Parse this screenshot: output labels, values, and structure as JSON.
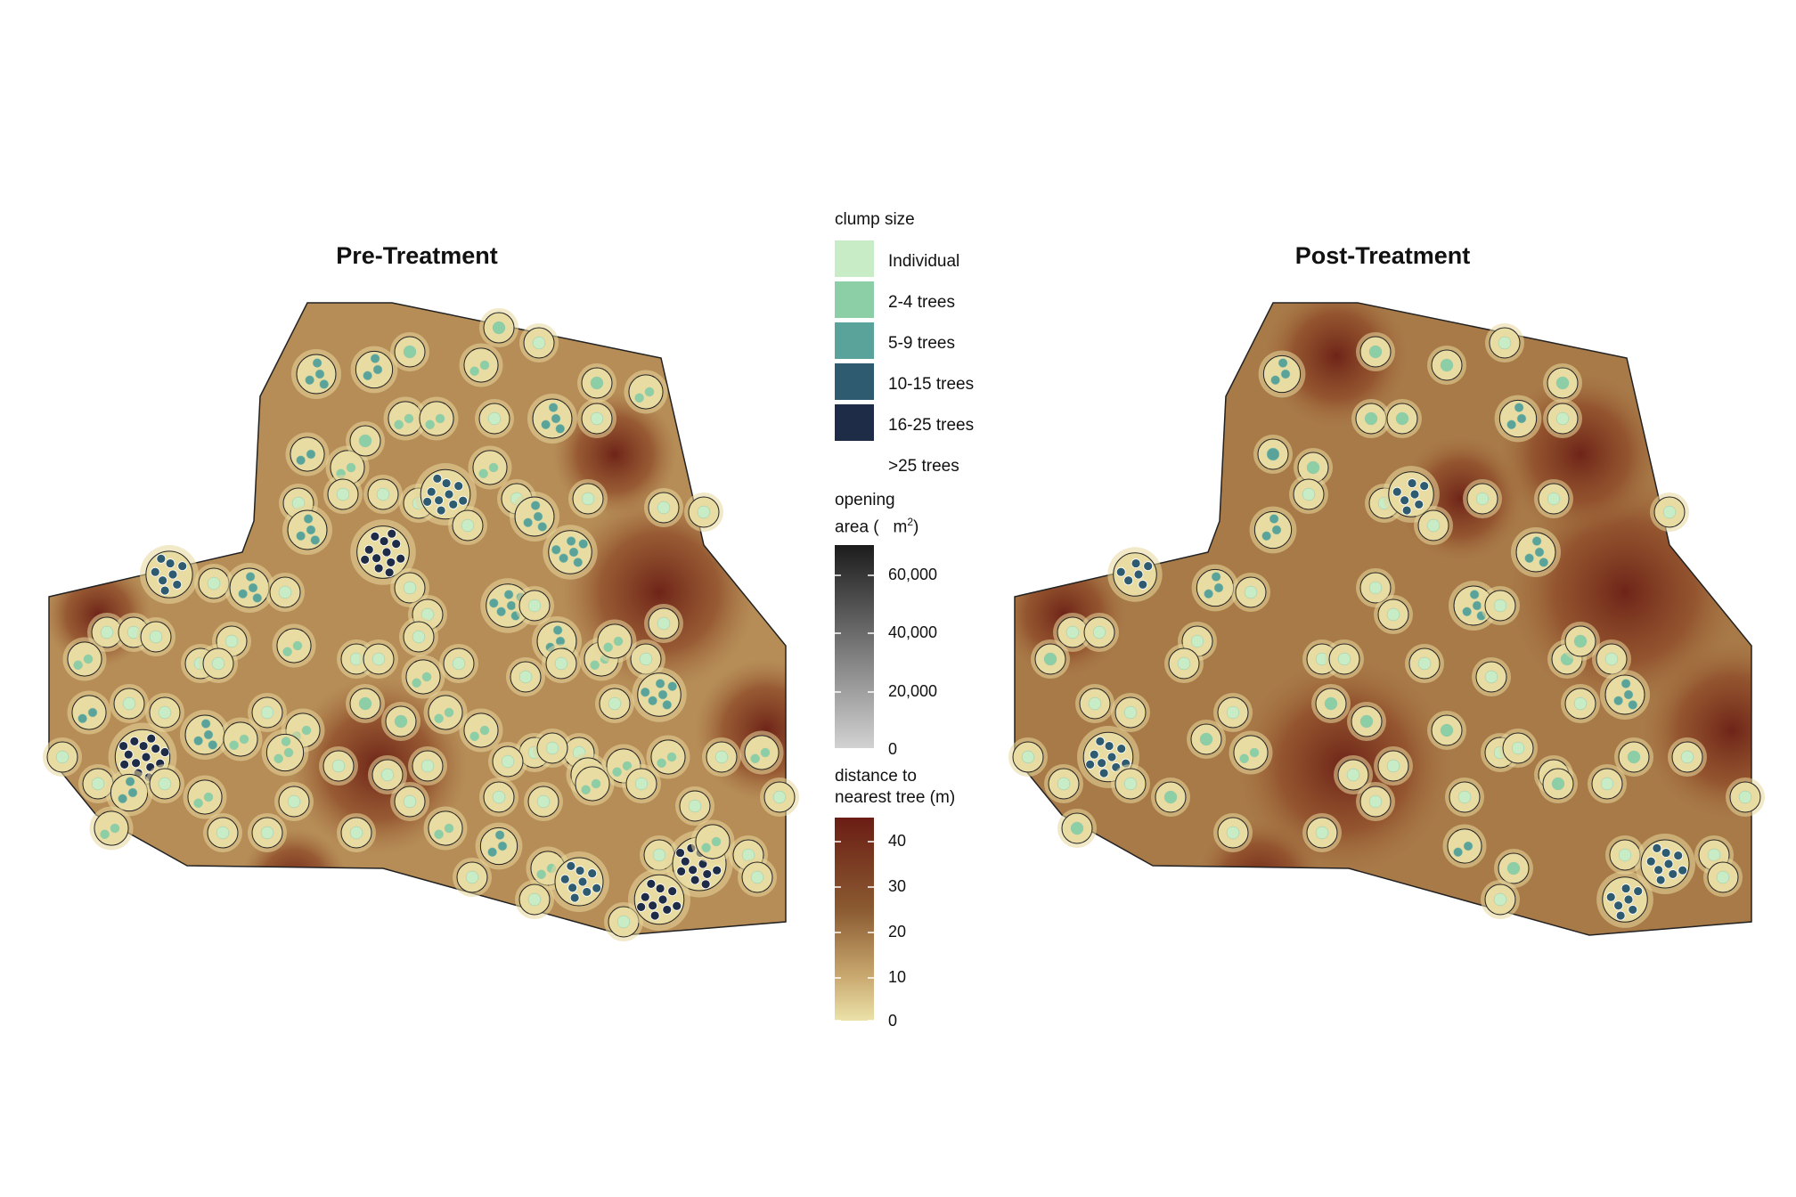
{
  "panels": [
    {
      "title": "Pre-Treatment"
    },
    {
      "title": "Post-Treatment"
    }
  ],
  "legend": {
    "clump_size": {
      "title": "clump size",
      "items": [
        {
          "label": "Individual",
          "color": "#c7ecc6"
        },
        {
          "label": "2-4 trees",
          "color": "#8ccfa6"
        },
        {
          "label": "5-9 trees",
          "color": "#5aa39a"
        },
        {
          "label": "10-15 trees",
          "color": "#2e5b70"
        },
        {
          "label": "16-25 trees",
          "color": "#1f2c48"
        },
        {
          "label": ">25 trees",
          "color": "#ffffff"
        }
      ]
    },
    "opening_area": {
      "title_line1": "opening",
      "title_line2": "area (",
      "title_unit": "m",
      "title_sup": "2",
      "title_close": ")",
      "ticks": [
        "60,000",
        "40,000",
        "20,000",
        "0"
      ],
      "range": [
        0,
        70000
      ],
      "colors": [
        "#d2d2d2",
        "#1c1c1c"
      ]
    },
    "distance": {
      "title_line1": "distance to",
      "title_line2": "nearest tree (m)",
      "ticks": [
        "40",
        "30",
        "20",
        "10",
        "0"
      ],
      "range": [
        0,
        45
      ],
      "colors": [
        "#ebe2a9",
        "#c9a86f",
        "#8a5a31",
        "#6b1d14"
      ]
    }
  },
  "map_colors": {
    "open_far": "#7a3420",
    "open_mid": "#b8925e",
    "near_tree": "#d6bf85",
    "outline": "#222222"
  }
}
